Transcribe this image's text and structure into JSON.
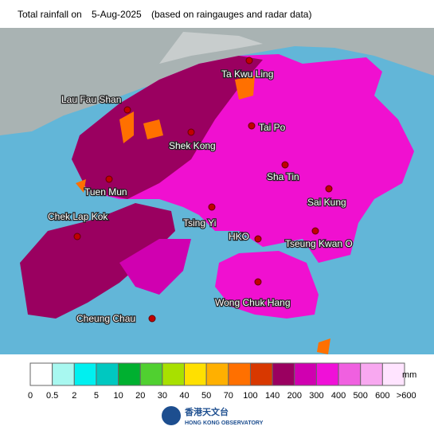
{
  "header": {
    "title": "Total rainfall on",
    "date": "5-Aug-2025",
    "note": "(based on raingauges and radar data)"
  },
  "stations": [
    "Ta Kwu Ling",
    "Lau Fau Shan",
    "Tai Po",
    "Shek Kong",
    "Sha Tin",
    "Tuen Mun",
    "Sai Kung",
    "Chek Lap Kok",
    "Tsing Yi",
    "HKO",
    "Tseung Kwan O",
    "Wong Chuk Hang",
    "Cheung Chau"
  ],
  "legend": {
    "unit": "mm",
    "colors": [
      "#ffffff",
      "#a8f8f0",
      "#00f0f0",
      "#00c8c0",
      "#00b030",
      "#50d030",
      "#a8e000",
      "#ffe000",
      "#ffb000",
      "#ff7000",
      "#d83800",
      "#9a0060",
      "#d000b0",
      "#f010d8",
      "#f060e0",
      "#f8a8f0",
      "#ffe4ff"
    ],
    "labels": [
      "0",
      "0.5",
      "2",
      "5",
      "10",
      "20",
      "30",
      "40",
      "50",
      "70",
      "100",
      "140",
      "200",
      "300",
      "400",
      "500",
      "600",
      ">600"
    ]
  },
  "logo": {
    "chinese": "香港天文台",
    "english": "HONG KONG OBSERVATORY"
  }
}
